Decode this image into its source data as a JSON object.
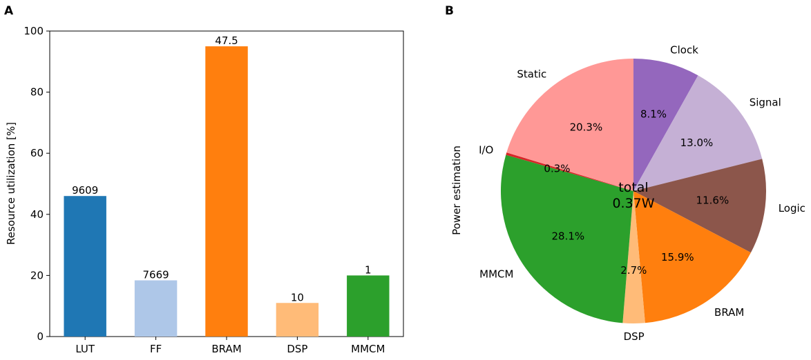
{
  "panels": {
    "a_label": "A",
    "b_label": "B"
  },
  "chart_data": [
    {
      "type": "bar",
      "title": "",
      "xlabel": "",
      "ylabel": "Resource utilization [%]",
      "ylim": [
        0,
        100
      ],
      "yticks": [
        0,
        20,
        40,
        60,
        80,
        100
      ],
      "categories": [
        "LUT",
        "FF",
        "BRAM",
        "DSP",
        "MMCM"
      ],
      "values": [
        46,
        18.4,
        95,
        11,
        20
      ],
      "bar_labels": [
        "9609",
        "7669",
        "47.5",
        "10",
        "1"
      ],
      "colors": [
        "#1f77b4",
        "#aec7e8",
        "#ff7f0e",
        "#ffbb78",
        "#2ca02c"
      ]
    },
    {
      "type": "pie",
      "ylabel": "Power estimation",
      "center_text": [
        "total",
        "0.37W"
      ],
      "start_angle_deg": 90,
      "direction": "clockwise",
      "slices": [
        {
          "label": "Clock",
          "pct": 8.1,
          "pct_label": "8.1%",
          "color": "#9467bd"
        },
        {
          "label": "Signal",
          "pct": 13.0,
          "pct_label": "13.0%",
          "color": "#c5b0d5"
        },
        {
          "label": "Logic",
          "pct": 11.6,
          "pct_label": "11.6%",
          "color": "#8c564b"
        },
        {
          "label": "BRAM",
          "pct": 15.9,
          "pct_label": "15.9%",
          "color": "#ff7f0e"
        },
        {
          "label": "DSP",
          "pct": 2.7,
          "pct_label": "2.7%",
          "color": "#ffbb78"
        },
        {
          "label": "MMCM",
          "pct": 28.1,
          "pct_label": "28.1%",
          "color": "#2ca02c"
        },
        {
          "label": "I/O",
          "pct": 0.3,
          "pct_label": "0.3%",
          "color": "#d62728"
        },
        {
          "label": "Static",
          "pct": 20.3,
          "pct_label": "20.3%",
          "color": "#ff9896"
        }
      ]
    }
  ]
}
